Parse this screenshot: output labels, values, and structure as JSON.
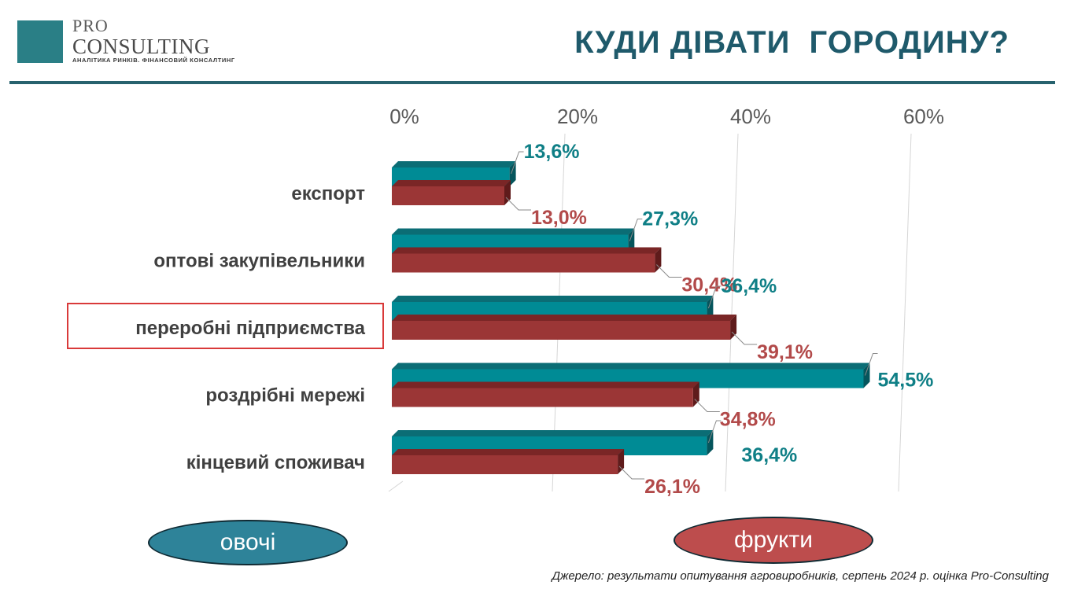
{
  "header": {
    "logo_pro": "PRO",
    "logo_name": "CONSULTING",
    "logo_tagline": "АНАЛІТИКА РИНКІВ. ФІНАНСОВИЙ КОНСАЛТИНГ",
    "title": "КУДИ ДІВАТИ  ГОРОДИНУ?"
  },
  "legend": {
    "vegetables": "овочі",
    "fruits": "фрукти"
  },
  "highlighted_category": "переробні підприємства",
  "source": "Джерело: результати опитування агровиробників, серпень 2024 р. оцінка Pro-Consulting",
  "colors": {
    "vegetables": "#008b95",
    "fruits": "#9b3636",
    "title": "#1f5a6b",
    "highlight_box": "#d93a3a"
  },
  "chart_data": {
    "type": "bar",
    "orientation": "horizontal",
    "categories": [
      "експорт",
      "оптові закупівельники",
      "переробні підприємства",
      "роздрібні мережі",
      "кінцевий споживач"
    ],
    "series": [
      {
        "name": "овочі",
        "values": [
          13.6,
          27.3,
          36.4,
          54.5,
          36.4
        ],
        "labels": [
          "13,6%",
          "27,3%",
          "36,4%",
          "54,5%",
          "36,4%"
        ]
      },
      {
        "name": "фрукти",
        "values": [
          13.0,
          30.4,
          39.1,
          34.8,
          26.1
        ],
        "labels": [
          "13,0%",
          "30,4%",
          "39,1%",
          "34,8%",
          "26,1%"
        ]
      }
    ],
    "xlim": [
      0,
      60
    ],
    "x_ticks": [
      "0%",
      "20%",
      "40%",
      "60%"
    ],
    "tick_values": [
      0,
      20,
      40,
      60
    ],
    "grid": true,
    "axis_position": "top",
    "legend_position": "bottom"
  }
}
